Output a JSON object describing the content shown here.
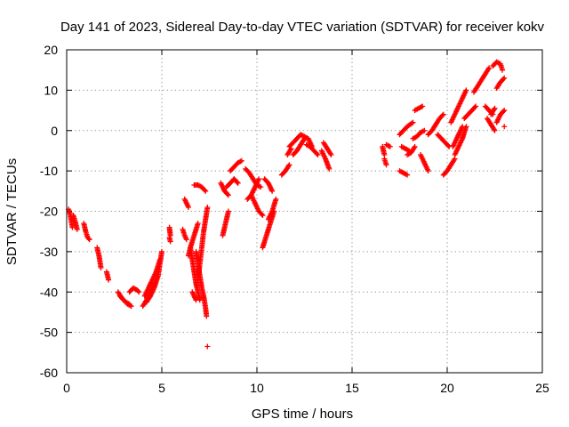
{
  "chart_data": {
    "type": "scatter",
    "title": "Day 141 of 2023, Sidereal Day-to-day VTEC variation (SDTVAR) for receiver kokv",
    "xlabel": "GPS time / hours",
    "ylabel": "SDTVAR / TECUs",
    "xlim": [
      0,
      25
    ],
    "ylim": [
      -60,
      20
    ],
    "xticks": [
      "0",
      "5",
      "10",
      "15",
      "20",
      "25"
    ],
    "yticks": [
      "20",
      "10",
      "0",
      "-10",
      "-20",
      "-30",
      "-40",
      "-50",
      "-60"
    ],
    "grid": true,
    "marker": "+",
    "color": "#ff0000",
    "tracks": [
      {
        "x": [
          0.1,
          0.2,
          0.3
        ],
        "y": [
          -19.5,
          -21,
          -24
        ]
      },
      {
        "x": [
          0.35,
          0.45,
          0.55
        ],
        "y": [
          -21,
          -22.5,
          -24.5
        ]
      },
      {
        "x": [
          0.9,
          1.0,
          1.1,
          1.2
        ],
        "y": [
          -23,
          -25,
          -26.5,
          -27
        ]
      },
      {
        "x": [
          1.6,
          1.7,
          1.8
        ],
        "y": [
          -29,
          -31,
          -34
        ]
      },
      {
        "x": [
          2.1,
          2.2
        ],
        "y": [
          -35,
          -37
        ]
      },
      {
        "x": [
          2.7,
          2.9,
          3.1,
          3.3
        ],
        "y": [
          -40,
          -41.5,
          -42.5,
          -43
        ]
      },
      {
        "x": [
          2.8,
          3.0,
          3.2,
          3.4
        ],
        "y": [
          -41,
          -42,
          -43,
          -43.5
        ]
      },
      {
        "x": [
          3.3,
          3.5,
          3.7,
          3.8
        ],
        "y": [
          -40,
          -39,
          -39.5,
          -40
        ]
      },
      {
        "x": [
          4.0,
          4.2,
          4.4,
          4.6,
          4.8,
          4.9,
          5.0
        ],
        "y": [
          -43.5,
          -42,
          -40,
          -38,
          -36,
          -33,
          -30
        ]
      },
      {
        "x": [
          4.1,
          4.3,
          4.5,
          4.7,
          4.9
        ],
        "y": [
          -41,
          -39,
          -37,
          -35,
          -32
        ]
      },
      {
        "x": [
          4.2,
          4.4,
          4.6,
          4.8
        ],
        "y": [
          -42.5,
          -41,
          -39,
          -36
        ]
      },
      {
        "x": [
          5.4,
          5.45
        ],
        "y": [
          -24,
          -26
        ]
      },
      {
        "x": [
          5.4,
          5.45
        ],
        "y": [
          -26.5,
          -27.5
        ]
      },
      {
        "x": [
          6.1,
          6.2,
          6.3
        ],
        "y": [
          -24.5,
          -26,
          -27
        ]
      },
      {
        "x": [
          6.2,
          6.4
        ],
        "y": [
          -17,
          -19
        ]
      },
      {
        "x": [
          6.4,
          6.5,
          6.7,
          6.9
        ],
        "y": [
          -31,
          -29,
          -26,
          -23
        ]
      },
      {
        "x": [
          6.6,
          6.8
        ],
        "y": [
          -40,
          -42
        ]
      },
      {
        "x": [
          6.5,
          6.6,
          6.7,
          6.8,
          6.9,
          7.0
        ],
        "y": [
          -29,
          -32,
          -35,
          -38,
          -40,
          -42
        ]
      },
      {
        "x": [
          6.8,
          6.9,
          7.0,
          7.1,
          7.2,
          7.3,
          7.35
        ],
        "y": [
          -30,
          -33,
          -36,
          -39,
          -41,
          -44,
          -46
        ]
      },
      {
        "x": [
          6.9,
          7.0,
          7.1,
          7.2,
          7.3,
          7.4
        ],
        "y": [
          -37,
          -33,
          -29,
          -25,
          -22,
          -19
        ]
      },
      {
        "x": [
          6.7,
          6.9,
          7.1,
          7.3
        ],
        "y": [
          -13.5,
          -13.5,
          -14,
          -15
        ]
      },
      {
        "x": [
          7.4
        ],
        "y": [
          -53.5
        ]
      },
      {
        "x": [
          8.2,
          8.3,
          8.4,
          8.5
        ],
        "y": [
          -26,
          -24,
          -22,
          -20
        ]
      },
      {
        "x": [
          8.1,
          8.3,
          8.5
        ],
        "y": [
          -13,
          -15,
          -16
        ]
      },
      {
        "x": [
          8.4,
          8.6,
          8.8,
          9.0
        ],
        "y": [
          -14,
          -13,
          -12,
          -13
        ]
      },
      {
        "x": [
          8.6,
          8.8,
          9.0,
          9.2
        ],
        "y": [
          -10,
          -9,
          -8,
          -7.5
        ]
      },
      {
        "x": [
          8.8,
          9.0
        ],
        "y": [
          -12,
          -13
        ]
      },
      {
        "x": [
          9.5,
          9.7,
          9.9,
          10.1
        ],
        "y": [
          -17,
          -16,
          -14,
          -12
        ]
      },
      {
        "x": [
          9.4,
          9.6,
          9.8,
          10.0,
          10.2
        ],
        "y": [
          -9.5,
          -10.5,
          -12,
          -13.5,
          -14
        ]
      },
      {
        "x": [
          9.7,
          9.9,
          10.1,
          10.3
        ],
        "y": [
          -16,
          -18,
          -20,
          -21
        ]
      },
      {
        "x": [
          10.4,
          10.6,
          10.8
        ],
        "y": [
          -12,
          -13,
          -15
        ]
      },
      {
        "x": [
          10.3,
          10.5,
          10.7,
          10.9
        ],
        "y": [
          -29,
          -26,
          -23,
          -20
        ]
      },
      {
        "x": [
          10.6,
          10.8,
          11.0
        ],
        "y": [
          -22,
          -20,
          -17
        ]
      },
      {
        "x": [
          11.3,
          11.5,
          11.7
        ],
        "y": [
          -11,
          -10,
          -8.5
        ]
      },
      {
        "x": [
          11.6,
          11.8
        ],
        "y": [
          -6,
          -4.5
        ]
      },
      {
        "x": [
          11.7,
          11.9,
          12.1,
          12.3,
          12.5,
          12.7,
          12.9
        ],
        "y": [
          -4,
          -3,
          -2,
          -1,
          -1.5,
          -2,
          -4
        ]
      },
      {
        "x": [
          11.9,
          12.1,
          12.3,
          12.5
        ],
        "y": [
          -6,
          -5,
          -3.5,
          -2
        ]
      },
      {
        "x": [
          12.6,
          12.8,
          13.0,
          13.2
        ],
        "y": [
          -3.5,
          -4,
          -5,
          -6
        ]
      },
      {
        "x": [
          13.4,
          13.6,
          13.8
        ],
        "y": [
          -5,
          -7,
          -9.5
        ]
      },
      {
        "x": [
          13.5,
          13.7,
          13.9
        ],
        "y": [
          -3,
          -4.5,
          -6
        ]
      },
      {
        "x": [
          16.6,
          16.7
        ],
        "y": [
          -4,
          -6
        ]
      },
      {
        "x": [
          16.8,
          17.0
        ],
        "y": [
          -3.5,
          -4
        ]
      },
      {
        "x": [
          16.7,
          16.8
        ],
        "y": [
          -7,
          -8.5
        ]
      },
      {
        "x": [
          17.5,
          17.7,
          17.9,
          18.2
        ],
        "y": [
          -1,
          0,
          1,
          2
        ]
      },
      {
        "x": [
          17.6,
          17.8,
          18.0
        ],
        "y": [
          -4,
          -4.5,
          -5
        ]
      },
      {
        "x": [
          17.9,
          18.1,
          18.3
        ],
        "y": [
          -6,
          -5.5,
          -4
        ]
      },
      {
        "x": [
          17.5,
          17.7,
          17.9
        ],
        "y": [
          -10,
          -10.5,
          -11
        ]
      },
      {
        "x": [
          18.3,
          18.5,
          18.7
        ],
        "y": [
          5,
          5.5,
          6
        ]
      },
      {
        "x": [
          18.6,
          18.8,
          19.0
        ],
        "y": [
          -6,
          -8,
          -10
        ]
      },
      {
        "x": [
          18.2,
          18.4,
          18.6,
          18.8
        ],
        "y": [
          -2,
          -1.5,
          -0.5,
          0
        ]
      },
      {
        "x": [
          19.0,
          19.2,
          19.4,
          19.6,
          19.8
        ],
        "y": [
          -1,
          0,
          1.5,
          3,
          4
        ]
      },
      {
        "x": [
          19.5,
          19.7,
          19.9,
          20.1
        ],
        "y": [
          -1,
          -2,
          -3,
          -4
        ]
      },
      {
        "x": [
          19.8,
          20.0,
          20.2,
          20.4
        ],
        "y": [
          -11,
          -10,
          -8.5,
          -7
        ]
      },
      {
        "x": [
          20.3,
          20.5,
          20.7,
          20.8
        ],
        "y": [
          -4,
          -2,
          0,
          1
        ]
      },
      {
        "x": [
          20.4,
          20.6,
          20.8,
          21.0
        ],
        "y": [
          -6,
          -4,
          -2,
          1
        ]
      },
      {
        "x": [
          20.2,
          20.4,
          20.6,
          20.8,
          21.0
        ],
        "y": [
          2,
          4,
          6,
          8,
          10
        ]
      },
      {
        "x": [
          20.9,
          21.1,
          21.3,
          21.5
        ],
        "y": [
          3,
          4,
          5,
          6
        ]
      },
      {
        "x": [
          21.4,
          21.6,
          21.8,
          22.0,
          22.2
        ],
        "y": [
          9.5,
          11,
          12.5,
          14,
          15.5
        ]
      },
      {
        "x": [
          22.0,
          22.2,
          22.4
        ],
        "y": [
          6,
          5,
          4
        ]
      },
      {
        "x": [
          22.1,
          22.3,
          22.5
        ],
        "y": [
          3,
          1.5,
          0
        ]
      },
      {
        "x": [
          22.3,
          22.5
        ],
        "y": [
          4,
          5.5
        ]
      },
      {
        "x": [
          22.4,
          22.6,
          22.8,
          22.9
        ],
        "y": [
          16,
          17,
          16.5,
          15
        ]
      },
      {
        "x": [
          22.6,
          22.8,
          23.0
        ],
        "y": [
          10.5,
          12,
          13
        ]
      },
      {
        "x": [
          22.6,
          22.8,
          23.0
        ],
        "y": [
          2,
          4,
          5
        ]
      },
      {
        "x": [
          23.0
        ],
        "y": [
          1
        ]
      }
    ]
  }
}
